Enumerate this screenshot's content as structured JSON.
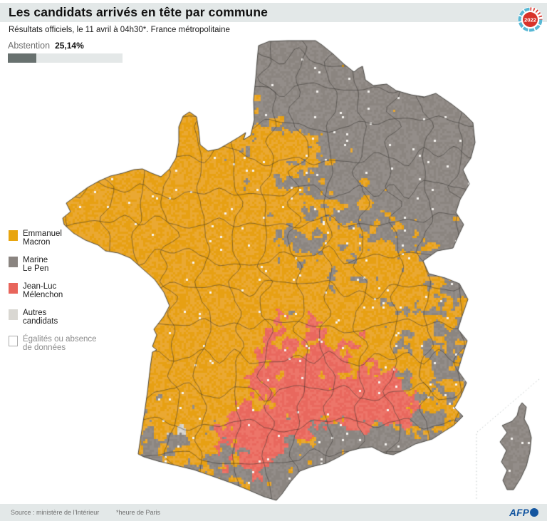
{
  "header": {
    "title": "Les candidats arrivés en tête par commune",
    "badge_year": "2022"
  },
  "subtitle": "Résultats officiels, le 11 avril à 04h30*. France métropolitaine",
  "abstention": {
    "label": "Abstention",
    "value": "25,14%",
    "fraction": 0.2514
  },
  "legend": {
    "items": [
      {
        "line1": "Emmanuel",
        "line2": "Macron",
        "color": "#E8A50E"
      },
      {
        "line1": "Marine",
        "line2": "Le Pen",
        "color": "#8A8480"
      },
      {
        "line1": "Jean-Luc",
        "line2": "Mélenchon",
        "color": "#E8655B"
      },
      {
        "line1": "Autres",
        "line2": "candidats",
        "color": "#D9D7D2"
      },
      {
        "line1": "Égalités ou absence",
        "line2": "de données",
        "color": "#FFFFFF",
        "border": "#ACACAC"
      }
    ]
  },
  "map": {
    "cell_colors": {
      "macron": [
        "#EAA832",
        "#E7A013"
      ],
      "le_pen": [
        "#8B8580",
        "#938D89"
      ],
      "melenchon": [
        "#E9685E",
        "#ED7569"
      ],
      "autres": [
        "#D9D7D2",
        "#CFCDC8"
      ],
      "blank": "#F6F4F0"
    },
    "boundary_color": "#33312E",
    "coast_color": "#3A3834",
    "inset_divider_color": "#BCC3C3"
  },
  "footer": {
    "source": "Source : ministère de l'Intérieur",
    "note": "*heure de Paris",
    "brand": "AFP"
  },
  "theme": {
    "page_bg": "#FFFFFF",
    "band_bg": "#E3E8E8",
    "footer_bg": "#E3E8E8",
    "bar_track": "#E4E8E8",
    "bar_fill": "#68716F",
    "text_dark": "#111111",
    "text_muted": "#6F6F6F",
    "legend_muted": "#8C8C8C",
    "afp_blue": "#1456A0",
    "badge_ring": "#58B8D5",
    "badge_center": "#D8332A"
  }
}
